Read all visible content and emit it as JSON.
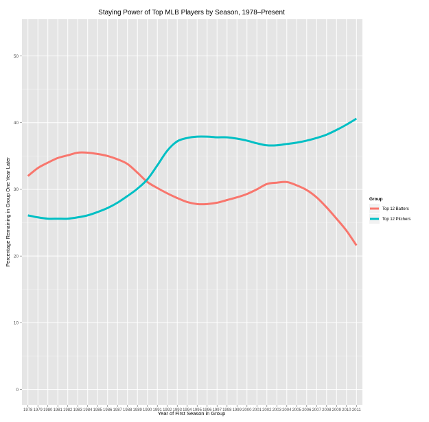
{
  "chart_data": {
    "type": "line",
    "title": "Staying Power of Top MLB Players by Season, 1978–Present",
    "xlabel": "Year of First Season in Group",
    "ylabel": "Percentage Remaining in Group One Year Later",
    "x": [
      1978,
      1979,
      1980,
      1981,
      1982,
      1983,
      1984,
      1985,
      1986,
      1987,
      1988,
      1989,
      1990,
      1991,
      1992,
      1993,
      1994,
      1995,
      1996,
      1997,
      1998,
      1999,
      2000,
      2001,
      2002,
      2003,
      2004,
      2005,
      2006,
      2007,
      2008,
      2009,
      2010,
      2011
    ],
    "xlim": [
      1977.4,
      2011.6
    ],
    "ylim": [
      -2.3,
      55.5
    ],
    "yticks": [
      0,
      10,
      20,
      30,
      40,
      50
    ],
    "grid": true,
    "legend": {
      "title": "Group",
      "position": "right"
    },
    "series": [
      {
        "name": "Top 12 Batters",
        "color": "#f8766d",
        "values": [
          32.0,
          33.2,
          34.0,
          34.7,
          35.1,
          35.5,
          35.5,
          35.3,
          35.0,
          34.5,
          33.8,
          32.5,
          31.1,
          30.2,
          29.4,
          28.7,
          28.1,
          27.8,
          27.8,
          28.0,
          28.4,
          28.8,
          29.3,
          30.0,
          30.8,
          31.0,
          31.1,
          30.6,
          29.9,
          28.8,
          27.3,
          25.6,
          23.8,
          21.6
        ]
      },
      {
        "name": "Top 12 Pitchers",
        "color": "#00bfc4",
        "values": [
          26.1,
          25.8,
          25.6,
          25.6,
          25.6,
          25.8,
          26.1,
          26.6,
          27.2,
          28.0,
          29.0,
          30.1,
          31.5,
          33.6,
          35.8,
          37.2,
          37.7,
          37.9,
          37.9,
          37.8,
          37.8,
          37.6,
          37.3,
          36.9,
          36.6,
          36.6,
          36.8,
          37.0,
          37.3,
          37.7,
          38.2,
          38.9,
          39.7,
          40.6
        ]
      }
    ]
  }
}
